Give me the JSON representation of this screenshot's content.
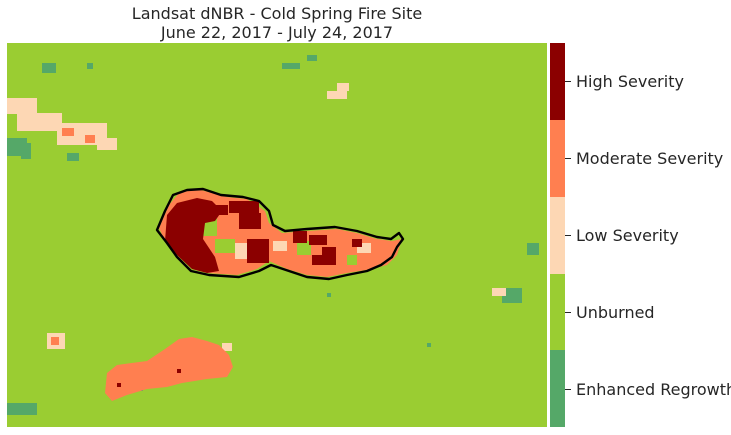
{
  "title": {
    "line1": "Landsat dNBR - Cold Spring Fire Site",
    "line2": "June 22, 2017 - July 24, 2017"
  },
  "colors": {
    "enhanced_regrowth": "#55a868",
    "unburned": "#9acd32",
    "low_severity": "#fdd7b4",
    "moderate_severity": "#ff7f50",
    "high_severity": "#8b0000",
    "fire_boundary": "#000000"
  },
  "legend": {
    "classes": [
      {
        "label": "High Severity",
        "color": "#8b0000"
      },
      {
        "label": "Moderate Severity",
        "color": "#ff7f50"
      },
      {
        "label": "Low Severity",
        "color": "#fdd7b4"
      },
      {
        "label": "Unburned",
        "color": "#9acd32"
      },
      {
        "label": "Enhanced Regrowth",
        "color": "#55a868"
      }
    ]
  }
}
